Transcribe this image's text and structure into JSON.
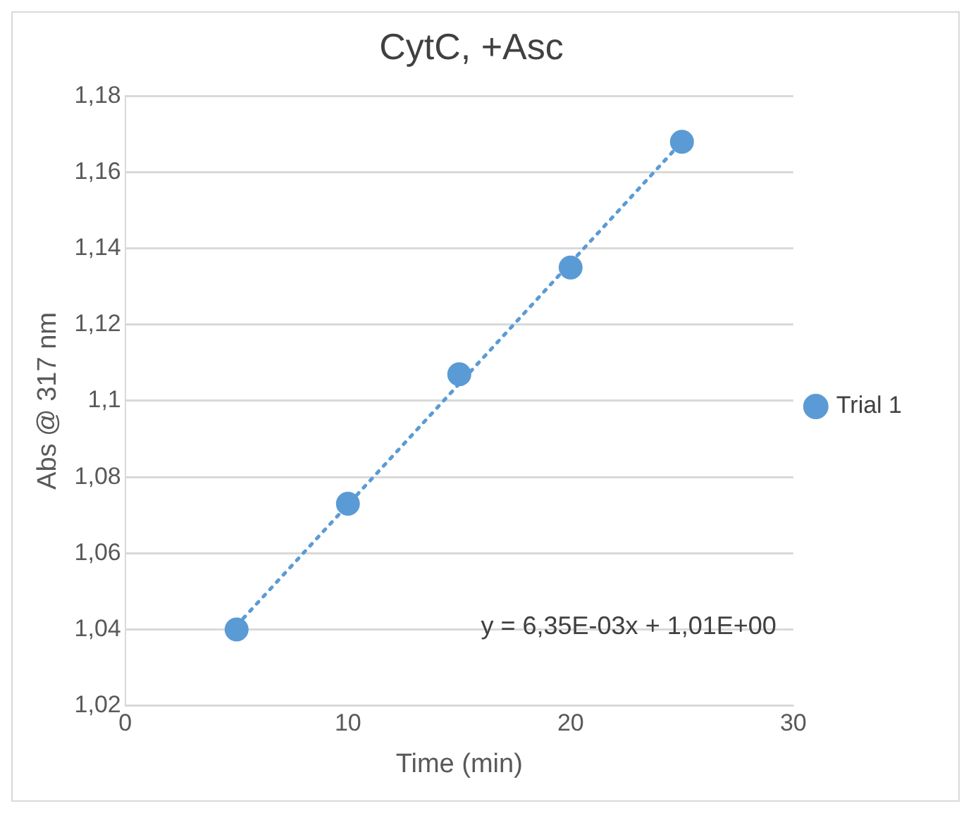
{
  "chart_data": {
    "type": "scatter",
    "title": "CytC, +Asc",
    "xlabel": "Time (min)",
    "ylabel": "Abs @ 317 nm",
    "series": [
      {
        "name": "Trial 1",
        "color": "#5b9bd5",
        "x": [
          5,
          10,
          15,
          20,
          25
        ],
        "values": [
          1.04,
          1.073,
          1.107,
          1.135,
          1.168
        ],
        "marker": "circle"
      },
      {
        "type": "line",
        "color": "#5b9bd5",
        "x": [
          5,
          25
        ],
        "values": [
          1.041,
          1.168
        ],
        "marker": "none",
        "line_style": "dotted"
      }
    ],
    "xlim": [
      0,
      30
    ],
    "xticks": [
      0,
      10,
      20,
      30
    ],
    "ylim": [
      1.02,
      1.18
    ],
    "yticks": [
      {
        "value": 1.02,
        "label": "1,02"
      },
      {
        "value": 1.04,
        "label": "1,04"
      },
      {
        "value": 1.06,
        "label": "1,06"
      },
      {
        "value": 1.08,
        "label": "1,08"
      },
      {
        "value": 1.1,
        "label": "1,1"
      },
      {
        "value": 1.12,
        "label": "1,12"
      },
      {
        "value": 1.14,
        "label": "1,14"
      },
      {
        "value": 1.16,
        "label": "1,16"
      },
      {
        "value": 1.18,
        "label": "1,18"
      }
    ],
    "grid": "y",
    "legend": "right",
    "annotations": [
      "y = 6,35E-03x + 1,01E+00"
    ]
  }
}
